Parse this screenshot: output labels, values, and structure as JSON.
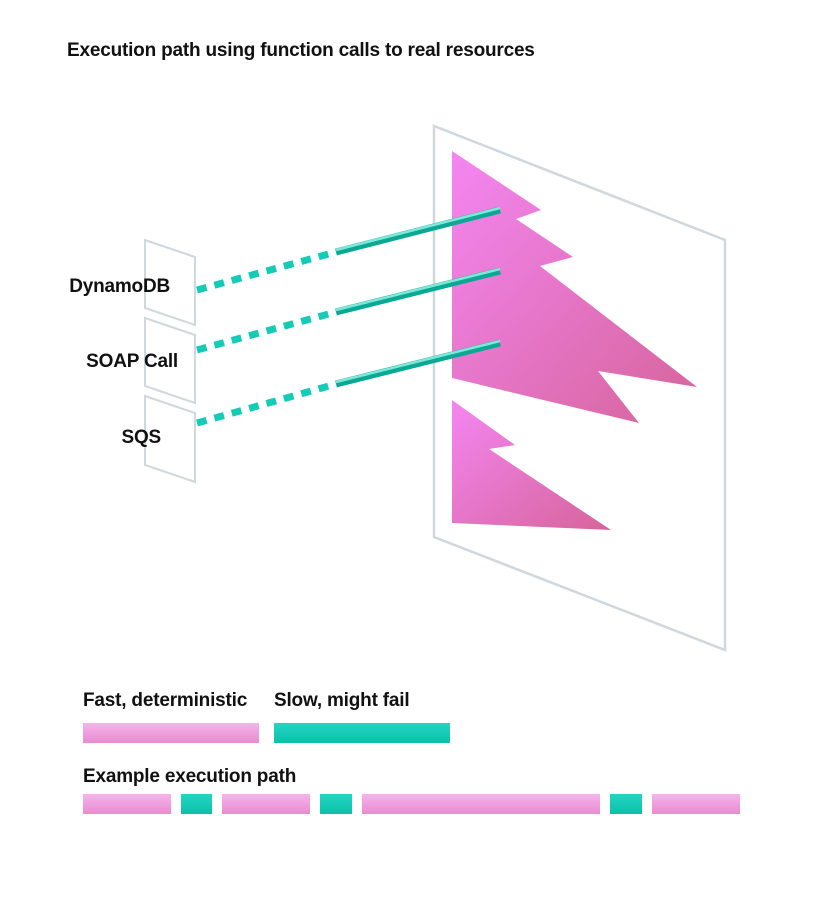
{
  "title": "Execution path using function calls to real resources",
  "resources": [
    {
      "label": "DynamoDB"
    },
    {
      "label": "SOAP Call"
    },
    {
      "label": "SQS"
    }
  ],
  "legend": {
    "fast_label": "Fast, deterministic",
    "slow_label": "Slow, might fail",
    "example_label": "Example execution path"
  },
  "colors": {
    "fast_top": "#f6b4ec",
    "fast_bottom": "#e98bcf",
    "slow": "#14ccb6",
    "panel_stroke": "#cfd8dd",
    "flame_top": "#f486f2",
    "flame_bottom": "#d9689a"
  },
  "example_path": [
    {
      "kind": "fast"
    },
    {
      "kind": "slow"
    },
    {
      "kind": "fast"
    },
    {
      "kind": "slow"
    },
    {
      "kind": "fast"
    },
    {
      "kind": "slow"
    },
    {
      "kind": "fast"
    }
  ]
}
